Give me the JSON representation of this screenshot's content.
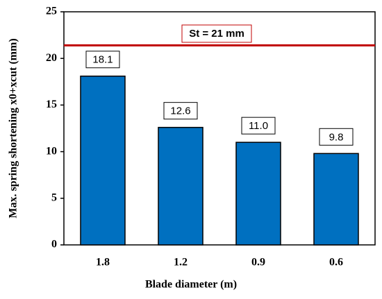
{
  "chart_data": {
    "type": "bar",
    "categories": [
      "1.8",
      "1.2",
      "0.9",
      "0.6"
    ],
    "values": [
      18.1,
      12.6,
      11.0,
      9.8
    ],
    "value_labels": [
      "18.1",
      "12.6",
      "11.0",
      "9.8"
    ],
    "color": "#0070c0",
    "xlabel": "Blade diameter (m)",
    "ylabel": "Max. spring shortening x0+xcut (mm)",
    "ylim": [
      0,
      25
    ],
    "yticks": [
      0,
      5,
      10,
      15,
      20,
      25
    ],
    "reference_line": {
      "value": 21.4,
      "label": "St = 21 mm",
      "color": "#c00000"
    }
  }
}
